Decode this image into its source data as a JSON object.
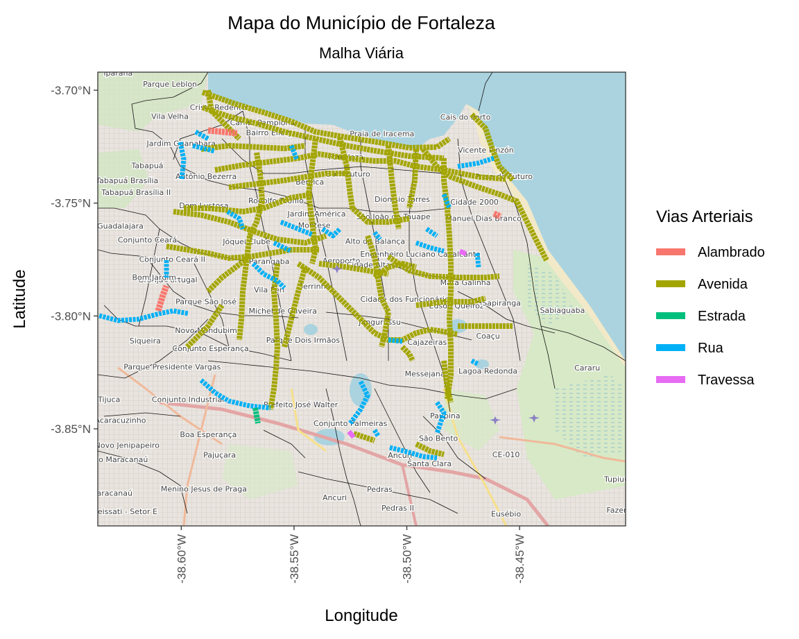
{
  "chart_data": {
    "type": "map",
    "title": "Mapa do Município de Fortaleza",
    "subtitle": "Malha Viária",
    "xlabel": "Longitude",
    "ylabel": "Latitude",
    "xlim": [
      -38.637,
      -38.403
    ],
    "ylim": [
      -3.893,
      -3.692
    ],
    "x_ticks": [
      {
        "value": -38.6,
        "label": "-38.60°W"
      },
      {
        "value": -38.55,
        "label": "-38.55°W"
      },
      {
        "value": -38.5,
        "label": "-38.50°W"
      },
      {
        "value": -38.45,
        "label": "-38.45°W"
      }
    ],
    "y_ticks": [
      {
        "value": -3.7,
        "label": "-3.70°N"
      },
      {
        "value": -3.75,
        "label": "-3.75°N"
      },
      {
        "value": -3.8,
        "label": "-3.80°N"
      },
      {
        "value": -3.85,
        "label": "-3.85°N"
      }
    ],
    "legend": {
      "title": "Vias Arteriais",
      "position": "right",
      "entries": [
        {
          "name": "Alambrado",
          "color": "#F8766D"
        },
        {
          "name": "Avenida",
          "color": "#A3A500"
        },
        {
          "name": "Estrada",
          "color": "#00BF7D"
        },
        {
          "name": "Rua",
          "color": "#00B0F6"
        },
        {
          "name": "Travessa",
          "color": "#E76BF3"
        }
      ]
    },
    "basemap_labels": [
      {
        "text": "Iparana",
        "lon": -38.628,
        "lat": -3.6935
      },
      {
        "text": "Parque Leblon",
        "lon": -38.605,
        "lat": -3.6985
      },
      {
        "text": "Vila Velha",
        "lon": -38.605,
        "lat": -3.7128
      },
      {
        "text": "Jardim Guanabara",
        "lon": -38.6,
        "lat": -3.7247
      },
      {
        "text": "Fortaleza",
        "lon": -38.527,
        "lat": -3.7307
      },
      {
        "text": "Tabapuá",
        "lon": -38.615,
        "lat": -3.7345
      },
      {
        "text": "Tabapuá Brasília",
        "lon": -38.624,
        "lat": -3.7411
      },
      {
        "text": "Tabapuá Brasília II",
        "lon": -38.62,
        "lat": -3.7464
      },
      {
        "text": "Dom Lustosa",
        "lon": -38.59,
        "lat": -3.7523
      },
      {
        "text": "Guadalajara",
        "lon": -38.627,
        "lat": -3.7613
      },
      {
        "text": "Conjunto Ceará",
        "lon": -38.615,
        "lat": -3.7675
      },
      {
        "text": "Granja Portugal",
        "lon": -38.606,
        "lat": -3.7852
      },
      {
        "text": "Parque São José",
        "lon": -38.589,
        "lat": -3.7948
      },
      {
        "text": "Novo Mondubim",
        "lon": -38.589,
        "lat": -3.8076
      },
      {
        "text": "Siqueira",
        "lon": -38.616,
        "lat": -3.8122
      },
      {
        "text": "Conjunto Esperança",
        "lon": -38.587,
        "lat": -3.8155
      },
      {
        "text": "Parque Presidente Vargas",
        "lon": -38.604,
        "lat": -3.8237
      },
      {
        "text": "Tijuca",
        "lon": -38.632,
        "lat": -3.8382
      },
      {
        "text": "Conjunto Industrial",
        "lon": -38.597,
        "lat": -3.8382
      },
      {
        "text": "Acaracuzinho",
        "lon": -38.627,
        "lat": -3.8473
      },
      {
        "text": "Boa Esperança",
        "lon": -38.588,
        "lat": -3.8536
      },
      {
        "text": "Novo Jenipapeiro",
        "lon": -38.624,
        "lat": -3.8584
      },
      {
        "text": "Pajuçara",
        "lon": -38.583,
        "lat": -3.8628
      },
      {
        "text": "Novo Maracanaú",
        "lon": -38.629,
        "lat": -3.8648
      },
      {
        "text": "Maracanaú",
        "lon": -38.631,
        "lat": -3.8796
      },
      {
        "text": "Menino Jesus de Praga",
        "lon": -38.59,
        "lat": -3.8778
      },
      {
        "text": "Jereissati - Setor E",
        "lon": -38.626,
        "lat": -3.8878
      },
      {
        "text": "Prefeito José Walter",
        "lon": -38.547,
        "lat": -3.8404
      },
      {
        "text": "Conjunto Palmeiras",
        "lon": -38.525,
        "lat": -3.8488
      },
      {
        "text": "Ancuri",
        "lon": -38.503,
        "lat": -3.8629
      },
      {
        "text": "Pedras",
        "lon": -38.512,
        "lat": -3.8779
      },
      {
        "text": "Ancuri",
        "lon": -38.532,
        "lat": -3.8816
      },
      {
        "text": "Messejana",
        "lon": -38.492,
        "lat": -3.8267
      },
      {
        "text": "Paupina",
        "lon": -38.483,
        "lat": -3.8454
      },
      {
        "text": "São Bento",
        "lon": -38.486,
        "lat": -3.8553
      },
      {
        "text": "Santa Clara",
        "lon": -38.49,
        "lat": -3.8665
      },
      {
        "text": "Lagoa Redonda",
        "lon": -38.464,
        "lat": -3.8256
      },
      {
        "text": "Cararu",
        "lon": -38.42,
        "lat": -3.8241
      },
      {
        "text": "Sabiaguaba",
        "lon": -38.431,
        "lat": -3.7986
      },
      {
        "text": "Eusébio",
        "lon": -38.456,
        "lat": -3.8888
      },
      {
        "text": "Tupiuú",
        "lon": -38.407,
        "lat": -3.8735
      },
      {
        "text": "Fazer",
        "lon": -38.407,
        "lat": -3.8871
      },
      {
        "text": "Aeroporto",
        "lon": -38.529,
        "lat": -3.7766
      },
      {
        "text": "Alto da Balança",
        "lon": -38.514,
        "lat": -3.7681
      },
      {
        "text": "Jóquei Clube",
        "lon": -38.571,
        "lat": -3.7682
      },
      {
        "text": "Parangaba",
        "lon": -38.561,
        "lat": -3.777
      },
      {
        "text": "Vila Peri",
        "lon": -38.561,
        "lat": -3.7896
      },
      {
        "text": "Serrinha",
        "lon": -38.541,
        "lat": -3.788
      },
      {
        "text": "Michel de Oliveira",
        "lon": -38.555,
        "lat": -3.799
      },
      {
        "text": "Parque Dois Irmãos",
        "lon": -38.546,
        "lat": -3.8118
      },
      {
        "text": "Jangurussu",
        "lon": -38.512,
        "lat": -3.8039
      },
      {
        "text": "Cidade dos Funcionários",
        "lon": -38.5,
        "lat": -3.7937
      },
      {
        "text": "Edson Queiroz",
        "lon": -38.478,
        "lat": -3.7966
      },
      {
        "text": "Cajazeiras",
        "lon": -38.491,
        "lat": -3.8128
      },
      {
        "text": "Engenheiro Luciano Cavalcante",
        "lon": -38.494,
        "lat": -3.7738
      },
      {
        "text": "Cidade 2000",
        "lon": -38.47,
        "lat": -3.7507
      },
      {
        "text": "Manuel Dias Branco",
        "lon": -38.466,
        "lat": -3.758
      },
      {
        "text": "Praia do Futuro",
        "lon": -38.457,
        "lat": -3.7393
      },
      {
        "text": "Vicente Pinzón",
        "lon": -38.465,
        "lat": -3.7276
      },
      {
        "text": "Cais do Porto",
        "lon": -38.474,
        "lat": -3.713
      },
      {
        "text": "Praia de Iracema",
        "lon": -38.511,
        "lat": -3.7204
      },
      {
        "text": "Dionísio Torres",
        "lon": -38.502,
        "lat": -3.7494
      },
      {
        "text": "São João do Tauape",
        "lon": -38.506,
        "lat": -3.7572
      },
      {
        "text": "Bom Jardim",
        "lon": -38.612,
        "lat": -3.784
      },
      {
        "text": "Jardim América",
        "lon": -38.54,
        "lat": -3.756
      },
      {
        "text": "Cristo Redentor",
        "lon": -38.583,
        "lat": -3.7087
      },
      {
        "text": "Carlito Pamplona",
        "lon": -38.564,
        "lat": -3.7155
      },
      {
        "text": "Rodolfo Teófilo",
        "lon": -38.558,
        "lat": -3.7501
      },
      {
        "text": "Benfica",
        "lon": -38.543,
        "lat": -3.7418
      },
      {
        "text": "Bom Futuro",
        "lon": -38.526,
        "lat": -3.7382
      },
      {
        "text": "Montese",
        "lon": -38.541,
        "lat": -3.761
      },
      {
        "text": "Conjunto Ceará II",
        "lon": -38.604,
        "lat": -3.776
      },
      {
        "text": "Antônio Bezerra",
        "lon": -38.589,
        "lat": -3.7393
      },
      {
        "text": "Cidade Alta",
        "lon": -38.517,
        "lat": -3.7785
      },
      {
        "text": "Mata Galinha",
        "lon": -38.474,
        "lat": -3.7864
      },
      {
        "text": "Sapiranga",
        "lon": -38.458,
        "lat": -3.7954
      },
      {
        "text": "Coaçu",
        "lon": -38.464,
        "lat": -3.81
      },
      {
        "text": "Pedras II",
        "lon": -38.504,
        "lat": -3.8862
      },
      {
        "text": "CE-010",
        "lon": -38.456,
        "lat": -3.8625
      },
      {
        "text": "Bairro Ellery",
        "lon": -38.561,
        "lat": -3.72
      }
    ]
  }
}
